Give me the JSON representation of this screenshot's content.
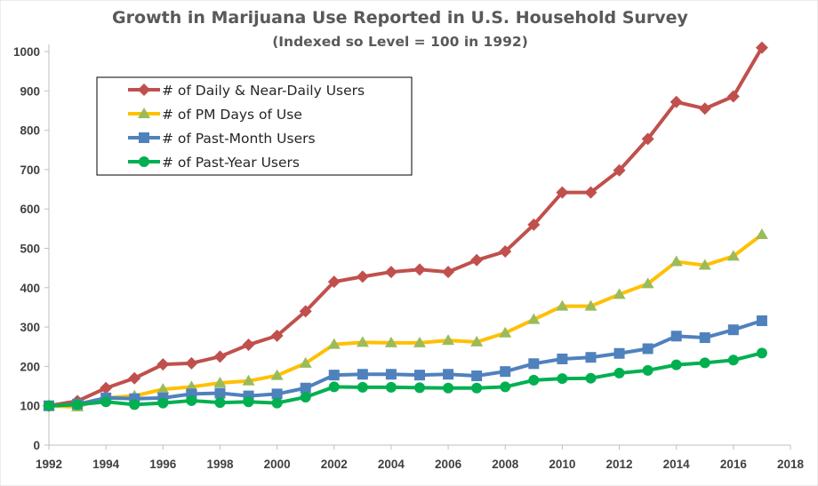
{
  "chart_data": {
    "type": "line",
    "title": "Growth in Marijuana Use Reported in U.S. Household Survey",
    "subtitle": "(Indexed so Level = 100 in 1992)",
    "xlabel": "",
    "ylabel": "",
    "xlim": [
      1992,
      2018
    ],
    "ylim": [
      0,
      1000
    ],
    "x_ticks": [
      1992,
      1994,
      1996,
      1998,
      2000,
      2002,
      2004,
      2006,
      2008,
      2010,
      2012,
      2014,
      2016,
      2018
    ],
    "y_ticks": [
      0,
      100,
      200,
      300,
      400,
      500,
      600,
      700,
      800,
      900,
      1000
    ],
    "grid": false,
    "legend_position": "top-left",
    "x": [
      1992,
      1993,
      1994,
      1995,
      1996,
      1997,
      1998,
      1999,
      2000,
      2001,
      2002,
      2003,
      2004,
      2005,
      2006,
      2007,
      2008,
      2009,
      2010,
      2011,
      2012,
      2013,
      2014,
      2015,
      2016,
      2017
    ],
    "series": [
      {
        "name": "# of Daily & Near-Daily Users",
        "color": "#C0504D",
        "marker": "diamond",
        "values": [
          100,
          112,
          145,
          170,
          205,
          208,
          225,
          255,
          278,
          340,
          415,
          428,
          440,
          446,
          440,
          470,
          492,
          560,
          642,
          642,
          698,
          778,
          872,
          855,
          886,
          1010
        ]
      },
      {
        "name": "# of PM Days of Use",
        "color": "#FFC000",
        "markerColor": "#9BBB59",
        "marker": "triangle",
        "values": [
          100,
          97,
          120,
          125,
          142,
          148,
          158,
          163,
          177,
          208,
          256,
          261,
          260,
          260,
          266,
          262,
          285,
          319,
          353,
          353,
          383,
          410,
          466,
          457,
          480,
          535
        ]
      },
      {
        "name": "# of Past-Month Users",
        "color": "#4F81BD",
        "marker": "square",
        "values": [
          100,
          104,
          120,
          118,
          120,
          130,
          132,
          125,
          130,
          145,
          178,
          180,
          180,
          178,
          180,
          176,
          187,
          207,
          219,
          223,
          233,
          245,
          277,
          273,
          293,
          316
        ]
      },
      {
        "name": "# of Past-Year Users",
        "color": "#00B050",
        "marker": "circle",
        "values": [
          100,
          103,
          110,
          103,
          107,
          113,
          108,
          110,
          107,
          122,
          148,
          147,
          147,
          146,
          145,
          145,
          148,
          165,
          169,
          170,
          183,
          190,
          204,
          209,
          216,
          234
        ]
      }
    ]
  }
}
